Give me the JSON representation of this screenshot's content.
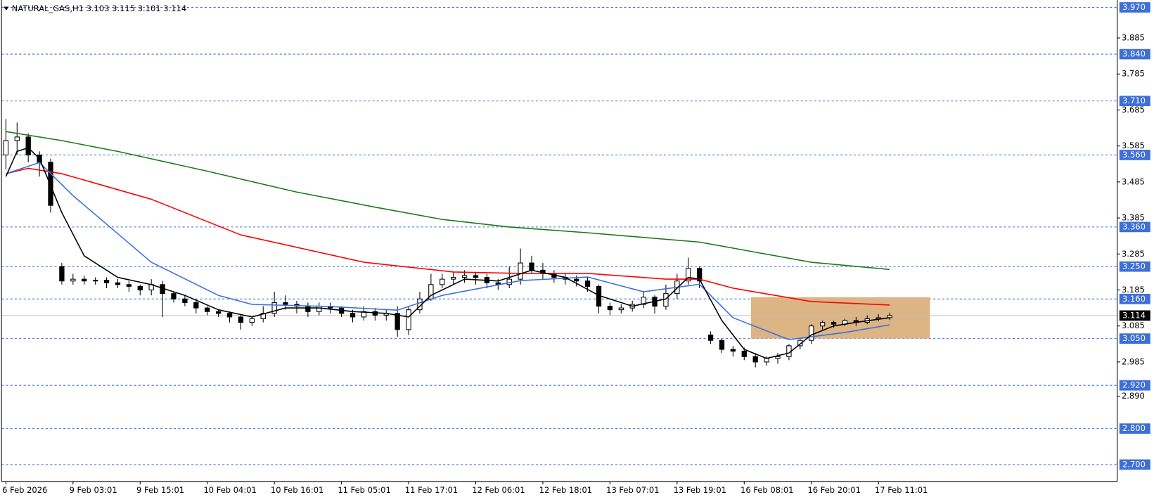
{
  "chart_data": {
    "type": "candlestick",
    "title": "NATURAL_GAS,H1  3.103 3.115 3.101 3.114",
    "categories": [
      "6 Feb 2026",
      null,
      null,
      null,
      null,
      null,
      "9 Feb 03:01",
      null,
      null,
      null,
      null,
      null,
      "9 Feb 15:01",
      null,
      null,
      null,
      null,
      null,
      "10 Feb 04:01",
      null,
      null,
      null,
      null,
      null,
      "10 Feb 16:01",
      null,
      null,
      null,
      null,
      null,
      "11 Feb 05:01",
      null,
      null,
      null,
      null,
      null,
      "11 Feb 17:01",
      null,
      null,
      null,
      null,
      null,
      "12 Feb 06:01",
      null,
      null,
      null,
      null,
      null,
      "12 Feb 18:01",
      null,
      null,
      null,
      null,
      null,
      "13 Feb 07:01",
      null,
      null,
      null,
      null,
      null,
      "13 Feb 19:01",
      null,
      null,
      null,
      null,
      null,
      "16 Feb 08:01",
      null,
      null,
      null,
      null,
      null,
      "16 Feb 20:01",
      null,
      null,
      null,
      null,
      null,
      "17 Feb 11:01",
      null
    ],
    "open": [
      3.56,
      3.6,
      3.61,
      3.56,
      3.54,
      3.25,
      3.21,
      3.215,
      3.21,
      3.212,
      3.205,
      3.2,
      3.195,
      3.185,
      3.2,
      3.175,
      3.16,
      3.15,
      3.135,
      3.125,
      3.12,
      3.11,
      3.095,
      3.105,
      3.12,
      3.15,
      3.145,
      3.14,
      3.125,
      3.14,
      3.135,
      3.12,
      3.11,
      3.125,
      3.115,
      3.12,
      3.075,
      3.13,
      3.16,
      3.2,
      3.215,
      3.22,
      3.225,
      3.22,
      3.205,
      3.2,
      3.215,
      3.26,
      3.24,
      3.23,
      3.22,
      3.215,
      3.21,
      3.195,
      3.14,
      3.13,
      3.135,
      3.145,
      3.165,
      3.14,
      3.175,
      3.21,
      3.245,
      3.06,
      3.045,
      3.02,
      3.015,
      3.0,
      2.985,
      2.995,
      3.0,
      3.03,
      3.045,
      3.085,
      3.095,
      3.09,
      3.1,
      3.095,
      3.105,
      3.108
    ],
    "high": [
      3.66,
      3.65,
      3.62,
      3.57,
      3.55,
      3.26,
      3.23,
      3.225,
      3.22,
      3.22,
      3.215,
      3.21,
      3.2,
      3.215,
      3.21,
      3.18,
      3.17,
      3.16,
      3.14,
      3.13,
      3.125,
      3.115,
      3.11,
      3.14,
      3.18,
      3.17,
      3.155,
      3.15,
      3.15,
      3.15,
      3.14,
      3.13,
      3.14,
      3.135,
      3.13,
      3.14,
      3.14,
      3.18,
      3.23,
      3.23,
      3.235,
      3.24,
      3.235,
      3.23,
      3.215,
      3.25,
      3.3,
      3.28,
      3.26,
      3.24,
      3.23,
      3.225,
      3.22,
      3.2,
      3.15,
      3.145,
      3.155,
      3.18,
      3.17,
      3.2,
      3.23,
      3.275,
      3.25,
      3.07,
      3.05,
      3.03,
      3.025,
      3.01,
      3.0,
      3.01,
      3.035,
      3.05,
      3.09,
      3.1,
      3.1,
      3.105,
      3.11,
      3.115,
      3.118,
      3.122
    ],
    "low": [
      3.52,
      3.56,
      3.54,
      3.5,
      3.4,
      3.2,
      3.2,
      3.2,
      3.2,
      3.19,
      3.19,
      3.18,
      3.17,
      3.17,
      3.11,
      3.15,
      3.14,
      3.12,
      3.115,
      3.11,
      3.095,
      3.075,
      3.085,
      3.095,
      3.11,
      3.13,
      3.12,
      3.11,
      3.115,
      3.12,
      3.11,
      3.095,
      3.1,
      3.1,
      3.1,
      3.055,
      3.06,
      3.12,
      3.155,
      3.19,
      3.2,
      3.205,
      3.2,
      3.19,
      3.185,
      3.19,
      3.2,
      3.23,
      3.215,
      3.205,
      3.2,
      3.195,
      3.18,
      3.12,
      3.115,
      3.12,
      3.125,
      3.135,
      3.12,
      3.13,
      3.16,
      3.2,
      3.19,
      3.035,
      3.01,
      3.0,
      2.99,
      2.97,
      2.975,
      2.98,
      2.99,
      3.02,
      3.035,
      3.075,
      3.08,
      3.085,
      3.085,
      3.09,
      3.098,
      3.101
    ],
    "close": [
      3.6,
      3.61,
      3.56,
      3.54,
      3.42,
      3.21,
      3.215,
      3.21,
      3.212,
      3.205,
      3.2,
      3.195,
      3.185,
      3.2,
      3.175,
      3.16,
      3.15,
      3.135,
      3.125,
      3.12,
      3.11,
      3.095,
      3.105,
      3.12,
      3.15,
      3.145,
      3.14,
      3.125,
      3.14,
      3.135,
      3.12,
      3.11,
      3.125,
      3.115,
      3.12,
      3.075,
      3.13,
      3.16,
      3.2,
      3.215,
      3.22,
      3.225,
      3.22,
      3.205,
      3.2,
      3.215,
      3.26,
      3.24,
      3.23,
      3.22,
      3.215,
      3.21,
      3.195,
      3.14,
      3.13,
      3.135,
      3.145,
      3.165,
      3.14,
      3.175,
      3.21,
      3.245,
      3.21,
      3.045,
      3.02,
      3.015,
      3.0,
      2.985,
      2.995,
      3.0,
      3.03,
      3.045,
      3.085,
      3.095,
      3.09,
      3.1,
      3.095,
      3.105,
      3.108,
      3.114
    ],
    "up_color": "#ffffff",
    "down_color": "#000000",
    "overlays": [
      {
        "color": "#1a7a1a",
        "x": [
          0,
          5,
          10,
          18,
          26,
          33,
          39,
          45,
          52,
          62,
          67,
          72,
          79
        ],
        "values": [
          3.625,
          3.6,
          3.57,
          3.515,
          3.457,
          3.415,
          3.381,
          3.36,
          3.344,
          3.318,
          3.29,
          3.262,
          3.242
        ]
      },
      {
        "color": "#ff0000",
        "x": [
          0,
          2,
          5,
          13,
          21,
          32,
          40,
          46,
          52,
          59,
          62,
          65,
          72,
          79
        ],
        "values": [
          3.508,
          3.523,
          3.508,
          3.437,
          3.338,
          3.262,
          3.235,
          3.231,
          3.231,
          3.215,
          3.215,
          3.19,
          3.153,
          3.143
        ]
      },
      {
        "color": "#3a6fe0",
        "x": [
          0,
          3,
          6,
          13,
          19,
          22,
          29,
          35,
          39,
          46,
          52,
          57,
          62,
          65,
          70,
          75,
          79
        ],
        "values": [
          3.508,
          3.539,
          3.447,
          3.262,
          3.17,
          3.145,
          3.139,
          3.129,
          3.17,
          3.211,
          3.221,
          3.18,
          3.201,
          3.108,
          3.047,
          3.067,
          3.088
        ]
      },
      {
        "color": "#000000",
        "x": [
          0,
          1,
          2,
          3,
          5,
          7,
          10,
          13,
          16,
          19,
          22,
          25,
          28,
          31,
          34,
          36,
          38,
          41,
          44,
          47,
          50,
          53,
          56,
          59,
          61,
          62,
          64,
          66,
          68,
          70,
          72,
          74,
          76,
          79
        ],
        "values": [
          3.5,
          3.57,
          3.58,
          3.55,
          3.4,
          3.28,
          3.22,
          3.2,
          3.17,
          3.13,
          3.11,
          3.135,
          3.135,
          3.125,
          3.12,
          3.11,
          3.17,
          3.215,
          3.21,
          3.24,
          3.22,
          3.17,
          3.14,
          3.16,
          3.22,
          3.215,
          3.1,
          3.02,
          2.995,
          3.01,
          3.06,
          3.085,
          3.095,
          3.108
        ]
      }
    ],
    "zone": {
      "color": "#ddb484",
      "xlim": [
        66.6,
        82.6
      ],
      "ylim": [
        3.05,
        3.165
      ]
    },
    "ylim": [
      2.653,
      3.9905
    ],
    "yticks": [
      3.885,
      3.785,
      3.685,
      3.585,
      3.485,
      3.385,
      3.285,
      3.185,
      3.085,
      2.985,
      {
        "value": 2.89,
        "label": "2.890"
      }
    ],
    "levels": [
      {
        "value": 3.97,
        "label": "3.970"
      },
      {
        "value": 3.84,
        "label": "3.840"
      },
      {
        "value": 3.71,
        "label": "3.710"
      },
      {
        "value": 3.56,
        "label": "3.560"
      },
      {
        "value": 3.36,
        "label": "3.360"
      },
      {
        "value": 3.25,
        "label": "3.250"
      },
      {
        "value": 3.16,
        "label": "3.160"
      },
      {
        "value": 3.05,
        "label": "3.050"
      },
      {
        "value": 2.92,
        "label": "2.920"
      },
      {
        "value": 2.8,
        "label": "2.800"
      },
      {
        "value": 2.7,
        "label": "2.700"
      }
    ],
    "level_color": "#3d6fd8",
    "current_price": 3.114
  }
}
